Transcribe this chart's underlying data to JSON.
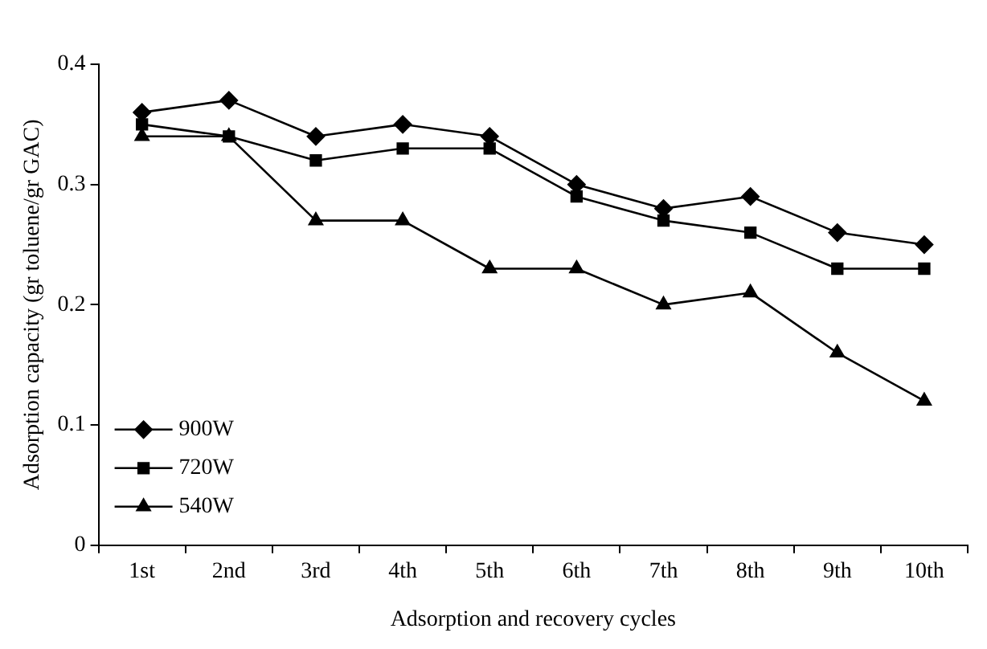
{
  "chart_data": {
    "type": "line",
    "xlabel": "Adsorption and recovery cycles",
    "ylabel": "Adsorption capacity (gr toluene/gr GAC)",
    "categories": [
      "1st",
      "2nd",
      "3rd",
      "4th",
      "5th",
      "6th",
      "7th",
      "8th",
      "9th",
      "10th"
    ],
    "series": [
      {
        "name": "900W",
        "color": "#000000",
        "marker": "diamond",
        "values": [
          0.36,
          0.37,
          0.34,
          0.35,
          0.34,
          0.3,
          0.28,
          0.29,
          0.26,
          0.25
        ]
      },
      {
        "name": "720W",
        "color": "#000000",
        "marker": "square",
        "values": [
          0.35,
          0.34,
          0.32,
          0.33,
          0.33,
          0.29,
          0.27,
          0.26,
          0.23,
          0.23
        ]
      },
      {
        "name": "540W",
        "color": "#000000",
        "marker": "triangle",
        "values": [
          0.34,
          0.34,
          0.27,
          0.27,
          0.23,
          0.23,
          0.2,
          0.21,
          0.16,
          0.12
        ]
      }
    ],
    "ylim": [
      0,
      0.4
    ],
    "yticks": [
      0,
      0.1,
      0.2,
      0.3,
      0.4
    ],
    "grid": false,
    "legend": "bottom left",
    "line_style": "solid"
  }
}
